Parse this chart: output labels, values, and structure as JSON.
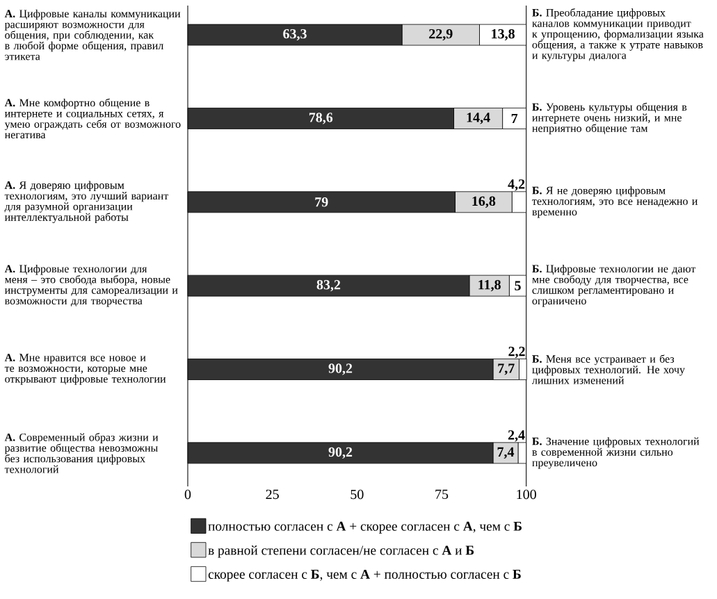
{
  "chart_data": {
    "type": "bar",
    "orientation": "horizontal",
    "stacked": true,
    "categories": [
      "**А.** Цифровые каналы коммуникации расширяют возможности для общения, при соблюдении, как в любой форме общения, правил этикета",
      "**А.** Мне комфортно общение в интернете и социальных сетях, я умею ограждать себя от возможного негатива",
      "**А.** Я доверяю цифровым технологиям, это лучший вариант для разумной организации интеллектуальной работы",
      "**А.** Цифровые технологии для меня – это свобода выбора, новые инструменты для самореализации и возможности для творчества",
      "**А.** Мне нравится все новое и те возможности, которые мне открывают цифровые технологии",
      "**А.** Современный образ жизни и развитие общества невозможны без использования цифровых технологий"
    ],
    "y2_categories": [
      "**Б.** Преобладание цифровых каналов коммуникации приводит к упрощению, формализации языка общения, а также к утрате навыков и культуры диалога",
      "**Б.** Уровень культуры общения в интернете очень низкий, и мне неприятно общение там",
      "**Б.** Я не доверяю цифровым технологиям, это все ненадежно и временно",
      "**Б.** Цифровые технологии не дают мне свободу для творчества, все слишком регламентировано и ограничено",
      "**Б.** Меня все устраивает и без цифровых технологий. Не хочу лишних изменений",
      "**Б.** Значение цифровых технологий в современной жизни сильно преувеличено"
    ],
    "series": [
      {
        "name": "полностью согласен с **А** + скорее согласен с **А**, чем с **Б**",
        "color": "#333333",
        "values": [
          63.3,
          78.6,
          79,
          83.2,
          90.2,
          90.2
        ],
        "value_labels": [
          "63,3",
          "78,6",
          "79",
          "83,2",
          "90,2",
          "90,2"
        ]
      },
      {
        "name": "в равной степени согласен/не согласен с **А** и **Б**",
        "color": "#d9d9d9",
        "values": [
          22.9,
          14.4,
          16.8,
          11.8,
          7.7,
          7.4
        ],
        "value_labels": [
          "22,9",
          "14,4",
          "16,8",
          "11,8",
          "7,7",
          "7,4"
        ]
      },
      {
        "name": "скорее согласен с **Б**, чем с **А** + полностью согласен с **Б**",
        "color": "#ffffff",
        "values": [
          13.8,
          7,
          4.2,
          5,
          2.2,
          2.4
        ],
        "value_labels": [
          "13,8",
          "7",
          "4,2",
          "5",
          "2,2",
          "2,4"
        ]
      }
    ],
    "xlim": [
      0,
      100
    ],
    "xticks": [
      0,
      25,
      50,
      75,
      100
    ],
    "legend": "bottom"
  }
}
